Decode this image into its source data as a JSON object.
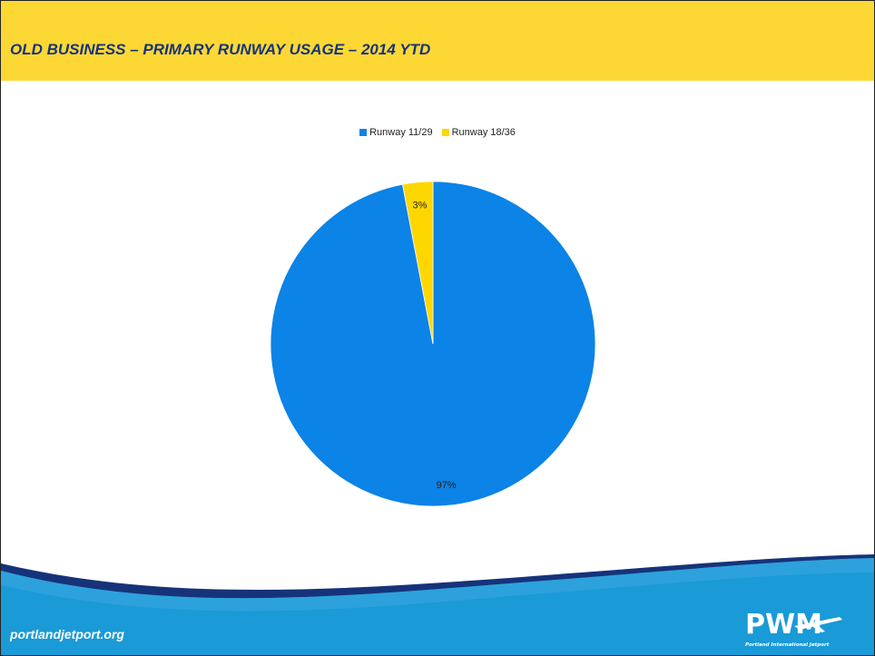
{
  "slide": {
    "title": "OLD BUSINESS – PRIMARY RUNWAY USAGE – 2014 YTD",
    "footer_url": "portlandjetport.org",
    "logo_text": "PWM",
    "logo_subtitle": "Portland International Jetport"
  },
  "colors": {
    "title_bar": "#fdd835",
    "title_text": "#16337a",
    "footer_blue": "#1a9ad6",
    "footer_navy": "#16337a"
  },
  "chart_data": {
    "type": "pie",
    "title": "",
    "legend_position": "top",
    "categories": [
      "Runway 11/29",
      "Runway 18/36"
    ],
    "values": [
      97,
      3
    ],
    "value_labels": [
      "97%",
      "3%"
    ],
    "colors": [
      "#0c83e6",
      "#ffd700"
    ]
  }
}
